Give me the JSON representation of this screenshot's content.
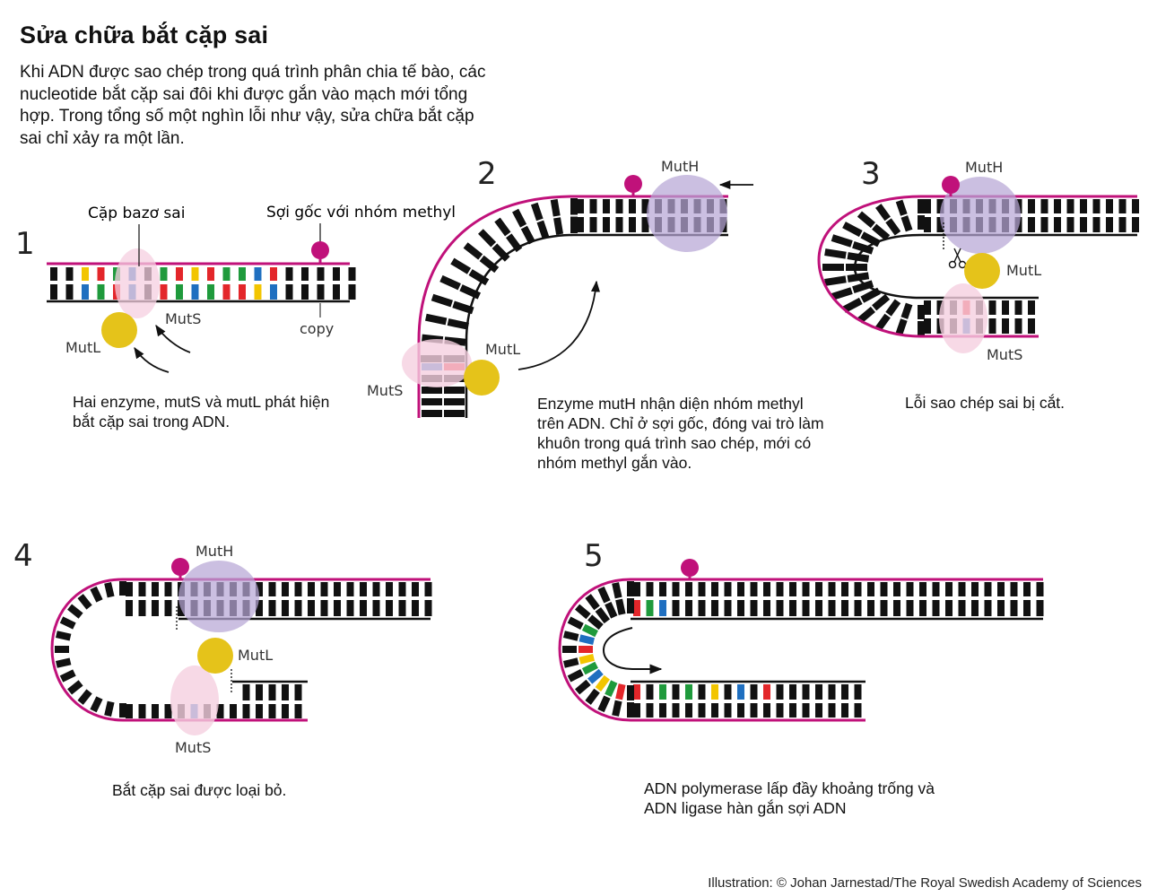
{
  "title": "Sửa chữa bắt cặp sai",
  "intro": "Khi ADN được sao chép trong quá trình phân chia tế bào, các nucleotide bắt cặp sai đôi khi được gắn vào mạch mới tổng hợp. Trong tổng số một nghìn lỗi như vậy, sửa chữa bắt cặp sai chỉ xảy ra một lần.",
  "steps": [
    {
      "number": "1",
      "caption": "Hai enzyme, mutS và mutL phát hiện bắt cặp sai trong ADN.",
      "labels": {
        "mismatch": "Cặp bazơ sai",
        "parent_strand": "Sợi gốc với nhóm methyl",
        "copy": "copy",
        "muts": "MutS",
        "mutl": "MutL"
      }
    },
    {
      "number": "2",
      "caption": "Enzyme mutH nhận diện nhóm methyl trên ADN. Chỉ ở sợi gốc, đóng vai trò làm khuôn trong quá trình sao chép, mới có nhóm methyl gắn vào.",
      "labels": {
        "muth": "MutH",
        "muts": "MutS",
        "mutl": "MutL"
      }
    },
    {
      "number": "3",
      "caption": "Lỗi sao chép sai bị cắt.",
      "labels": {
        "muth": "MutH",
        "mutl": "MutL",
        "muts": "MutS"
      }
    },
    {
      "number": "4",
      "caption": "Bắt cặp sai được loại bỏ.",
      "labels": {
        "muth": "MutH",
        "mutl": "MutL",
        "muts": "MutS"
      }
    },
    {
      "number": "5",
      "caption": "ADN polymerase lấp đầy khoảng trống và ADN ligase hàn gắn sợi ADN"
    }
  ],
  "credit": "Illustration: © Johan Jarnestad/The Royal Swedish Academy of Sciences",
  "colors": {
    "strand": "#c0117a",
    "base": "#111111",
    "mutl": "#e5c31a",
    "muts": "#f5cfe0",
    "muth": "#b7a6d6",
    "nuc_yellow": "#f2c500",
    "nuc_red": "#e3262a",
    "nuc_green": "#1f9a3c",
    "nuc_blue": "#1f6fc0"
  }
}
